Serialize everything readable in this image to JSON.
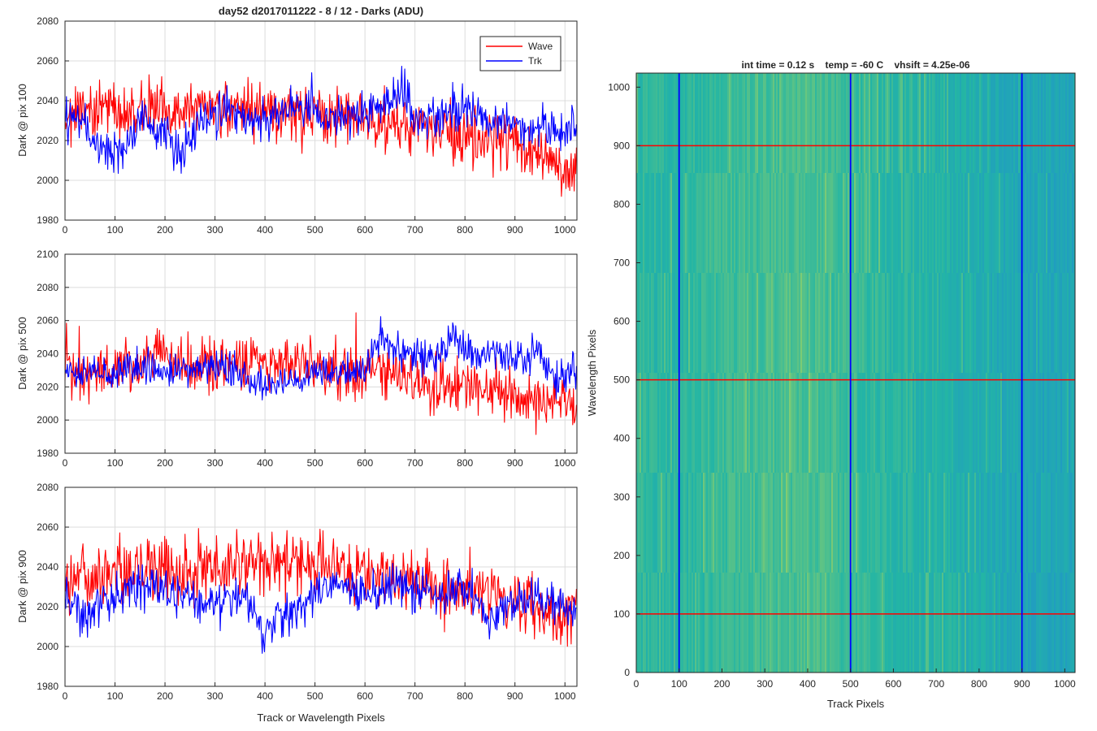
{
  "figure": {
    "title": "day52 d2017011222 - 8 / 12 - Darks (ADU)"
  },
  "colors": {
    "wave": "#ff0000",
    "trk": "#0000ff",
    "grid": "#dcdcdc",
    "axis": "#262626",
    "image_low": "#1f8fd0",
    "image_mid": "#23b5a5",
    "image_high": "#8fcf6a"
  },
  "chart_data": [
    {
      "type": "line",
      "ylabel": "Dark @ pix 100",
      "xlabel": "",
      "xlim": [
        0,
        1024
      ],
      "ylim": [
        1980,
        2080
      ],
      "xticks": [
        "0",
        "100",
        "200",
        "300",
        "400",
        "500",
        "600",
        "700",
        "800",
        "900",
        "1000"
      ],
      "yticks": [
        "1980",
        "2000",
        "2020",
        "2040",
        "2060",
        "2080"
      ],
      "grid": true,
      "legend": {
        "position": "top-right",
        "entries": [
          "Wave",
          "Trk"
        ]
      },
      "series": [
        {
          "name": "Wave",
          "color": "#ff0000",
          "x": [
            0,
            50,
            100,
            150,
            200,
            250,
            300,
            350,
            400,
            450,
            500,
            550,
            600,
            650,
            700,
            750,
            800,
            850,
            900,
            950,
            1000,
            1024
          ],
          "y": [
            2034,
            2036,
            2035,
            2037,
            2036,
            2035,
            2036,
            2035,
            2034,
            2033,
            2033,
            2031,
            2031,
            2029,
            2027,
            2025,
            2022,
            2021,
            2018,
            2012,
            2008,
            2006
          ],
          "noise": 8
        },
        {
          "name": "Trk",
          "color": "#0000ff",
          "x": [
            0,
            30,
            60,
            90,
            120,
            150,
            200,
            230,
            260,
            300,
            350,
            400,
            430,
            460,
            500,
            550,
            600,
            650,
            680,
            700,
            750,
            800,
            850,
            900,
            950,
            1000,
            1024
          ],
          "y": [
            2032,
            2030,
            2020,
            2012,
            2018,
            2030,
            2025,
            2010,
            2028,
            2034,
            2033,
            2030,
            2034,
            2040,
            2034,
            2030,
            2034,
            2040,
            2048,
            2030,
            2032,
            2036,
            2030,
            2028,
            2027,
            2025,
            2028
          ],
          "noise": 6
        }
      ]
    },
    {
      "type": "line",
      "ylabel": "Dark @ pix 500",
      "xlabel": "",
      "xlim": [
        0,
        1024
      ],
      "ylim": [
        1980,
        2100
      ],
      "xticks": [
        "0",
        "100",
        "200",
        "300",
        "400",
        "500",
        "600",
        "700",
        "800",
        "900",
        "1000"
      ],
      "yticks": [
        "1980",
        "2000",
        "2020",
        "2040",
        "2060",
        "2080",
        "2100"
      ],
      "grid": true,
      "series": [
        {
          "name": "Wave",
          "color": "#ff0000",
          "x": [
            0,
            50,
            100,
            150,
            190,
            200,
            250,
            300,
            350,
            400,
            450,
            500,
            550,
            600,
            650,
            700,
            750,
            800,
            850,
            900,
            950,
            1000,
            1024
          ],
          "y": [
            2030,
            2030,
            2032,
            2035,
            2045,
            2036,
            2034,
            2035,
            2036,
            2034,
            2035,
            2032,
            2030,
            2028,
            2027,
            2024,
            2022,
            2020,
            2018,
            2016,
            2012,
            2008,
            2006
          ],
          "noise": 9
        },
        {
          "name": "Trk",
          "color": "#0000ff",
          "x": [
            0,
            50,
            100,
            150,
            200,
            250,
            300,
            350,
            400,
            450,
            500,
            550,
            600,
            630,
            650,
            700,
            750,
            780,
            800,
            850,
            900,
            950,
            980,
            1000,
            1024
          ],
          "y": [
            2030,
            2028,
            2030,
            2032,
            2030,
            2030,
            2032,
            2030,
            2020,
            2025,
            2030,
            2028,
            2034,
            2048,
            2045,
            2038,
            2040,
            2052,
            2042,
            2038,
            2040,
            2038,
            2022,
            2028,
            2032
          ],
          "noise": 6
        }
      ]
    },
    {
      "type": "line",
      "ylabel": "Dark @ pix 900",
      "xlabel": "Track or Wavelength Pixels",
      "xlim": [
        0,
        1024
      ],
      "ylim": [
        1980,
        2080
      ],
      "xticks": [
        "0",
        "100",
        "200",
        "300",
        "400",
        "500",
        "600",
        "700",
        "800",
        "900",
        "1000"
      ],
      "yticks": [
        "1980",
        "2000",
        "2020",
        "2040",
        "2060",
        "2080"
      ],
      "grid": true,
      "series": [
        {
          "name": "Wave",
          "color": "#ff0000",
          "x": [
            0,
            50,
            100,
            150,
            200,
            250,
            300,
            350,
            400,
            450,
            500,
            550,
            600,
            650,
            700,
            750,
            800,
            850,
            900,
            950,
            1000,
            1024
          ],
          "y": [
            2030,
            2034,
            2036,
            2038,
            2040,
            2040,
            2041,
            2040,
            2040,
            2040,
            2039,
            2038,
            2036,
            2034,
            2032,
            2030,
            2028,
            2025,
            2022,
            2019,
            2016,
            2018
          ],
          "noise": 9
        },
        {
          "name": "Trk",
          "color": "#0000ff",
          "x": [
            0,
            40,
            60,
            100,
            150,
            200,
            250,
            300,
            350,
            400,
            430,
            460,
            500,
            550,
            600,
            650,
            700,
            750,
            800,
            850,
            900,
            950,
            1000,
            1024
          ],
          "y": [
            2028,
            2014,
            2020,
            2025,
            2030,
            2028,
            2024,
            2022,
            2026,
            2006,
            2015,
            2018,
            2028,
            2030,
            2028,
            2030,
            2028,
            2026,
            2030,
            2012,
            2022,
            2024,
            2020,
            2018
          ],
          "noise": 6
        }
      ]
    },
    {
      "type": "heatmap",
      "title": "int time = 0.12 s    temp = -60 C    vhsift = 4.25e-06",
      "xlabel": "Track Pixels",
      "ylabel": "Wavelength Pixels",
      "xlim": [
        0,
        1024
      ],
      "ylim": [
        0,
        1024
      ],
      "xticks": [
        "0",
        "100",
        "200",
        "300",
        "400",
        "500",
        "600",
        "700",
        "800",
        "900",
        "1000"
      ],
      "yticks": [
        "0",
        "100",
        "200",
        "300",
        "400",
        "500",
        "600",
        "700",
        "800",
        "900",
        "1000"
      ],
      "column_brightness": [
        [
          0,
          0.55
        ],
        [
          100,
          0.5
        ],
        [
          200,
          0.62
        ],
        [
          300,
          0.66
        ],
        [
          400,
          0.68
        ],
        [
          500,
          0.6
        ],
        [
          600,
          0.52
        ],
        [
          700,
          0.46
        ],
        [
          800,
          0.4
        ],
        [
          900,
          0.3
        ],
        [
          1024,
          0.28
        ]
      ],
      "vertical_markers": {
        "color": "#0000ff",
        "x": [
          100,
          500,
          900
        ]
      },
      "horizontal_markers": {
        "color": "#ff0000",
        "y": [
          100,
          500,
          900
        ]
      }
    }
  ]
}
